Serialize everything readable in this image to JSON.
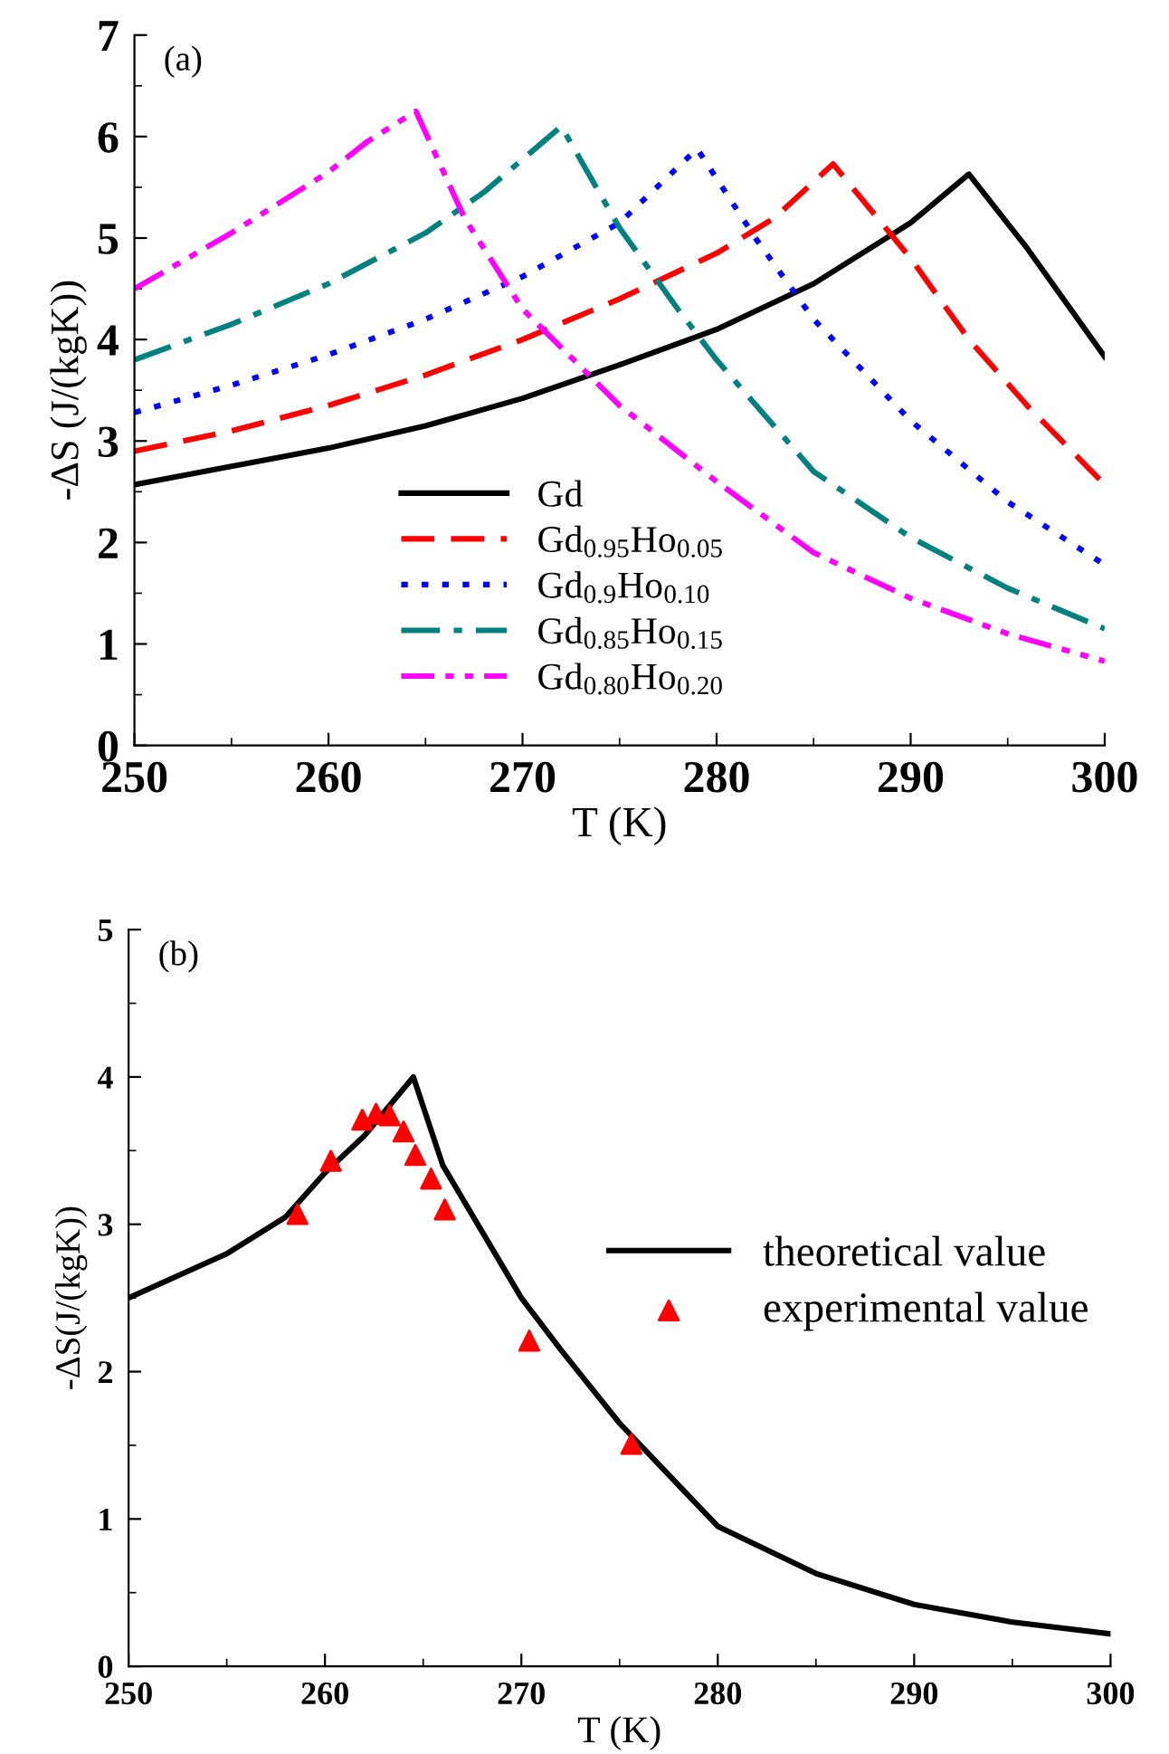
{
  "chart_data": [
    {
      "type": "line",
      "xlabel": "T (K)",
      "ylabel": "-ΔS (J/(kgK))",
      "annotations": [
        "(a)"
      ],
      "xlim": [
        250,
        300
      ],
      "ylim": [
        0,
        7
      ],
      "xticks": [
        250,
        260,
        270,
        280,
        290,
        300
      ],
      "yticks": [
        0,
        1,
        2,
        3,
        4,
        5,
        6,
        7
      ],
      "grid": false,
      "legend": "bottom",
      "marker": "none",
      "series": [
        {
          "name": "Gd",
          "color": "#000000",
          "line_style": "solid",
          "x": [
            250,
            255,
            260,
            265,
            270,
            275,
            280,
            285,
            290,
            293,
            296,
            300
          ],
          "values": [
            2.57,
            2.75,
            2.93,
            3.15,
            3.42,
            3.75,
            4.1,
            4.55,
            5.15,
            5.63,
            4.9,
            3.83
          ]
        },
        {
          "name": "Gd$_{0.95}$Ho$_{0.05}$",
          "color": "#ff0000",
          "line_style": "dashed",
          "x": [
            250,
            255,
            260,
            265,
            270,
            275,
            280,
            283,
            286,
            290,
            293,
            296,
            300
          ],
          "values": [
            2.9,
            3.1,
            3.35,
            3.65,
            4.0,
            4.4,
            4.85,
            5.2,
            5.73,
            4.8,
            4.0,
            3.35,
            2.57
          ]
        },
        {
          "name": "Gd$_{0.9}$Ho$_{0.10}$",
          "color": "#0000ff",
          "line_style": "dotted",
          "x": [
            250,
            255,
            260,
            265,
            270,
            275,
            279,
            282,
            285,
            290,
            295,
            300
          ],
          "values": [
            3.28,
            3.55,
            3.85,
            4.2,
            4.62,
            5.15,
            5.88,
            5.0,
            4.2,
            3.2,
            2.4,
            1.78
          ]
        },
        {
          "name": "Gd$_{0.85}$Ho$_{0.15}$",
          "color": "#008080",
          "line_style": "dashdot",
          "x": [
            250,
            255,
            260,
            265,
            268,
            272,
            275,
            278,
            280,
            285,
            290,
            295,
            300
          ],
          "values": [
            3.8,
            4.15,
            4.55,
            5.05,
            5.45,
            6.1,
            5.1,
            4.3,
            3.8,
            2.7,
            2.05,
            1.55,
            1.15
          ]
        },
        {
          "name": "Gd$_{0.80}$Ho$_{0.20}$",
          "color": "#ff00ff",
          "line_style": "dashdotdot",
          "x": [
            250,
            255,
            260,
            262,
            264.5,
            267,
            270,
            275,
            280,
            285,
            290,
            295,
            300
          ],
          "values": [
            4.5,
            5.05,
            5.65,
            5.95,
            6.25,
            5.2,
            4.3,
            3.35,
            2.6,
            1.9,
            1.45,
            1.1,
            0.83
          ]
        }
      ]
    },
    {
      "type": "line",
      "xlabel": "T (K)",
      "ylabel": "-ΔS(J/(kgK))",
      "annotations": [
        "(b)"
      ],
      "xlim": [
        250,
        300
      ],
      "ylim": [
        0,
        5
      ],
      "xticks": [
        250,
        260,
        270,
        280,
        290,
        300
      ],
      "yticks": [
        0,
        1,
        2,
        3,
        4,
        5
      ],
      "grid": false,
      "legend": "right",
      "series": [
        {
          "name": "theoretical value",
          "type": "line",
          "color": "#000000",
          "line_style": "solid",
          "marker": "none",
          "x": [
            250,
            255,
            258,
            260,
            262,
            264.5,
            266,
            268,
            270,
            272,
            275,
            280,
            285,
            290,
            295,
            300
          ],
          "values": [
            2.5,
            2.8,
            3.05,
            3.35,
            3.6,
            4.0,
            3.4,
            2.95,
            2.5,
            2.15,
            1.65,
            0.95,
            0.63,
            0.42,
            0.3,
            0.22
          ]
        },
        {
          "name": "experimental value",
          "type": "scatter",
          "color": "#ff0000",
          "marker": "triangle",
          "x": [
            258.6,
            260.3,
            261.9,
            262.6,
            263.3,
            264.0,
            264.6,
            265.4,
            266.1,
            270.4,
            275.6
          ],
          "values": [
            3.07,
            3.43,
            3.71,
            3.75,
            3.74,
            3.63,
            3.47,
            3.31,
            3.1,
            2.21,
            1.51
          ]
        }
      ]
    }
  ]
}
